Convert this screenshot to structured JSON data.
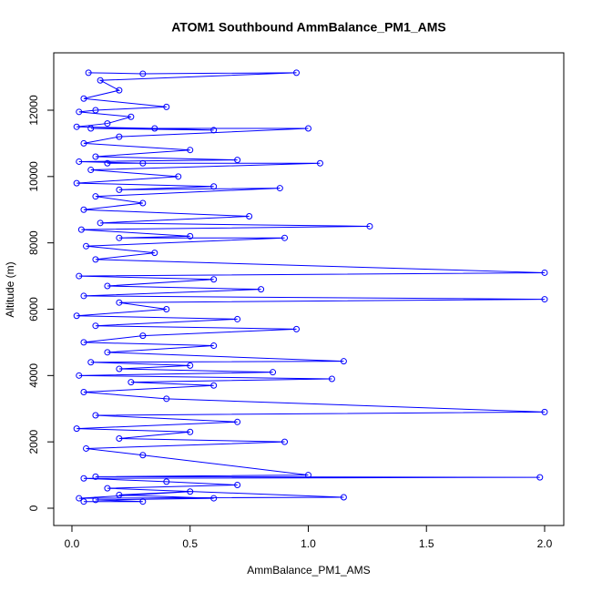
{
  "chart_data": {
    "type": "line",
    "markers": true,
    "title": "ATOM1 Southbound AmmBalance_PM1_AMS",
    "x_label": "AmmBalance_PM1_AMS",
    "y_label": "Altitude (m)",
    "color": "#0000ff",
    "xlim": [
      -0.077,
      2.081
    ],
    "ylim": [
      -522,
      13730
    ],
    "xticks": [
      {
        "value": 0,
        "label": "0.0"
      },
      0.5,
      {
        "value": 1,
        "label": "1.0"
      },
      1.5,
      {
        "value": 2,
        "label": "2.0"
      }
    ],
    "yticks": [
      0,
      2000,
      4000,
      6000,
      8000,
      10000,
      12000
    ],
    "x": [
      0.07,
      0.3,
      0.95,
      0.12,
      0.2,
      0.05,
      0.4,
      0.1,
      0.03,
      0.25,
      0.15,
      0.02,
      0.35,
      0.6,
      0.08,
      1.0,
      0.2,
      0.05,
      0.5,
      0.1,
      0.7,
      0.03,
      0.3,
      0.15,
      1.05,
      0.08,
      0.45,
      0.02,
      0.6,
      0.2,
      0.88,
      0.1,
      0.3,
      0.05,
      0.75,
      0.12,
      1.26,
      0.04,
      0.5,
      0.2,
      0.9,
      0.06,
      0.35,
      0.1,
      2.0,
      0.03,
      0.6,
      0.15,
      0.8,
      0.05,
      2.0,
      0.2,
      0.4,
      0.02,
      0.7,
      0.1,
      0.95,
      0.3,
      0.05,
      0.6,
      0.15,
      1.15,
      0.08,
      0.5,
      0.2,
      0.85,
      0.03,
      1.1,
      0.25,
      0.6,
      0.05,
      0.4,
      2.0,
      0.1,
      0.7,
      0.02,
      0.5,
      0.2,
      0.9,
      0.06,
      0.3,
      1.0,
      0.1,
      1.98,
      0.05,
      0.4,
      0.7,
      0.15,
      1.15,
      0.03,
      0.5,
      0.2,
      0.6,
      0.1,
      0.3,
      0.05
    ],
    "values": [
      13130,
      13100,
      13130,
      12900,
      12600,
      12350,
      12100,
      12000,
      11950,
      11800,
      11600,
      11500,
      11450,
      11400,
      11450,
      11450,
      11200,
      11000,
      10800,
      10600,
      10500,
      10450,
      10400,
      10400,
      10400,
      10200,
      10000,
      9800,
      9700,
      9600,
      9650,
      9400,
      9200,
      9000,
      8800,
      8600,
      8500,
      8400,
      8200,
      8150,
      8150,
      7900,
      7700,
      7500,
      7100,
      7000,
      6900,
      6700,
      6600,
      6400,
      6300,
      6200,
      6000,
      5800,
      5700,
      5500,
      5400,
      5200,
      5000,
      4900,
      4700,
      4430,
      4400,
      4300,
      4200,
      4100,
      4000,
      3900,
      3800,
      3700,
      3500,
      3300,
      2900,
      2800,
      2600,
      2400,
      2300,
      2100,
      2000,
      1800,
      1600,
      1000,
      950,
      930,
      900,
      800,
      700,
      600,
      330,
      300,
      500,
      400,
      300,
      250,
      200,
      200
    ]
  }
}
